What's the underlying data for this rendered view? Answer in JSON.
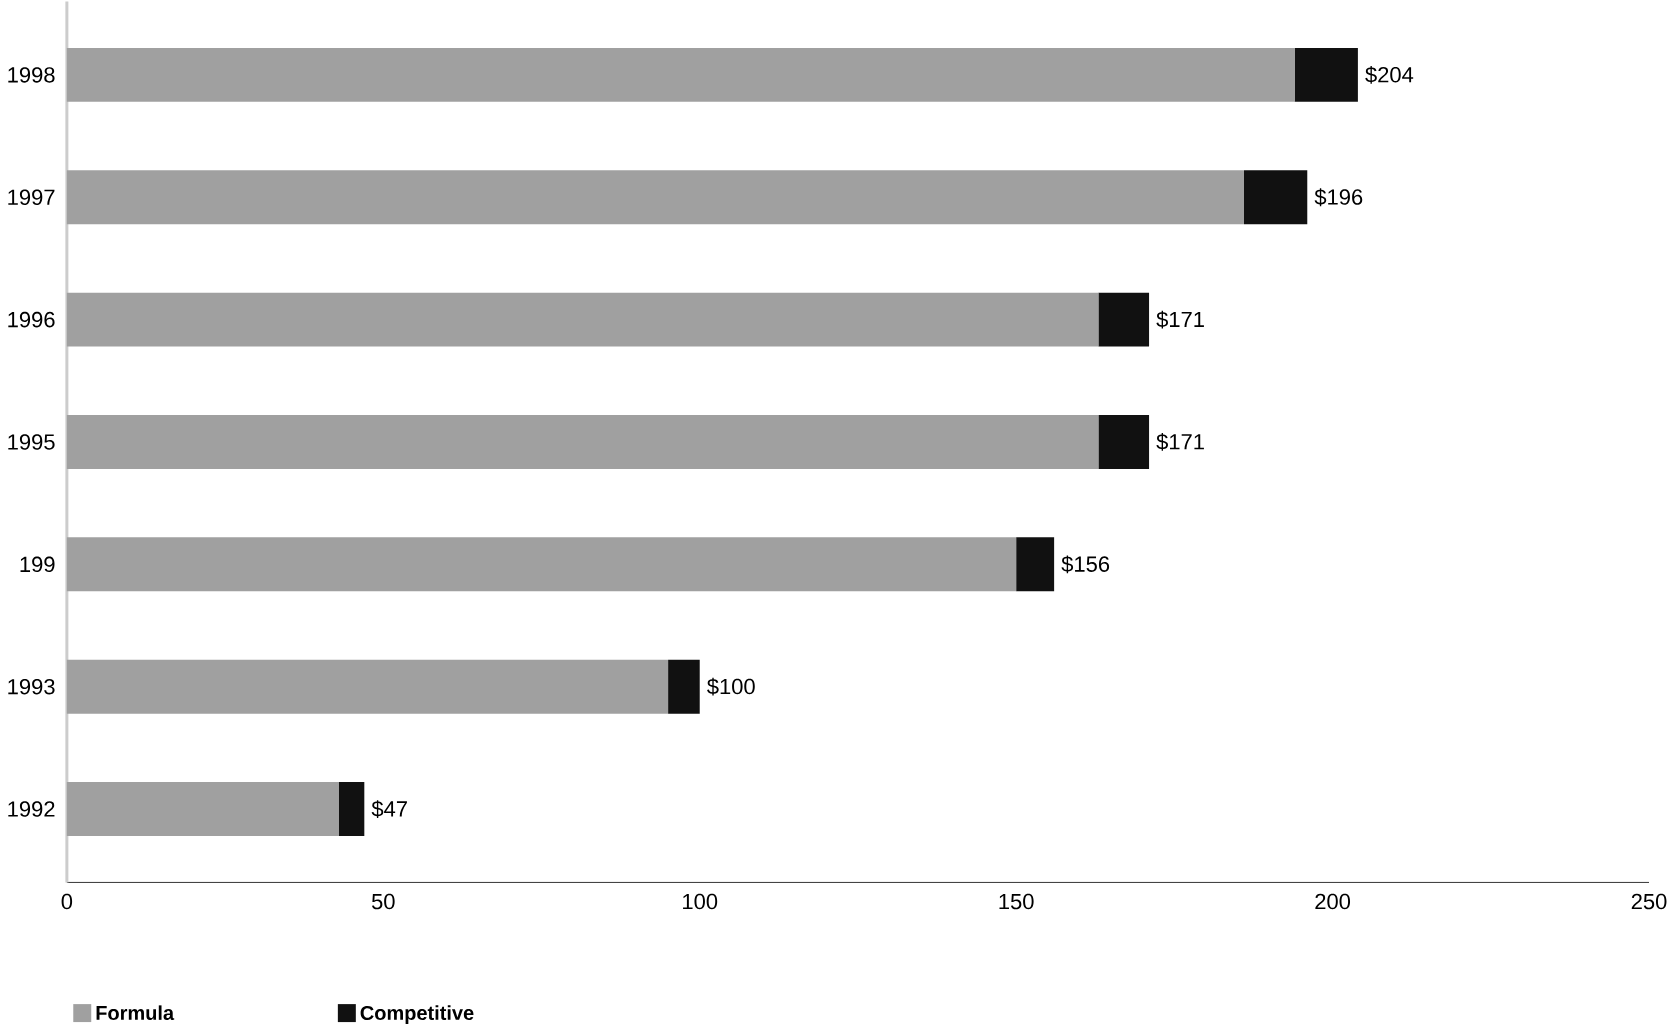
{
  "chart_data": {
    "type": "bar",
    "orientation": "horizontal",
    "stacked": true,
    "categories": [
      "1998",
      "1997",
      "1996",
      "1995",
      "199",
      "1993",
      "1992"
    ],
    "series": [
      {
        "name": "Formula",
        "color": "#a0a0a0",
        "values": [
          194,
          186,
          163,
          163,
          150,
          95,
          43
        ]
      },
      {
        "name": "Competitive",
        "color": "#111111",
        "values": [
          10,
          10,
          8,
          8,
          6,
          5,
          4
        ]
      }
    ],
    "totals": [
      "$204",
      "$196",
      "$171",
      "$171",
      "$156",
      "$100",
      "$47"
    ],
    "xlim": [
      0,
      250
    ],
    "xticks": [
      0,
      50,
      100,
      150,
      200,
      250
    ],
    "grid": false,
    "legend": "bottom"
  }
}
